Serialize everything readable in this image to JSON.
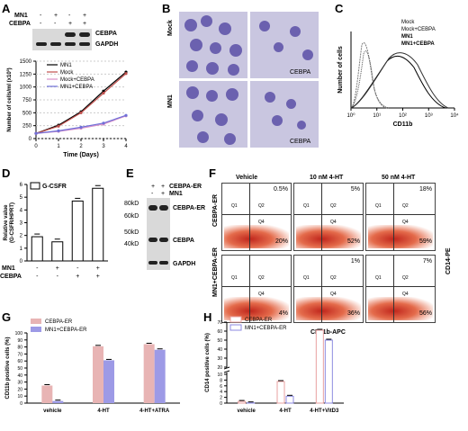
{
  "panels": {
    "A": "A",
    "B": "B",
    "C": "C",
    "D": "D",
    "E": "E",
    "F": "F",
    "G": "G",
    "H": "H"
  },
  "panelA": {
    "blot": {
      "row_labels": [
        "MN1",
        "CEBPA"
      ],
      "mn1_signs": [
        "-",
        "+",
        "-",
        "+"
      ],
      "cebpa_signs": [
        "-",
        "-",
        "+",
        "+"
      ],
      "bands": [
        "CEBPA",
        "GAPDH"
      ]
    }
  },
  "panelB": {
    "row_labels": [
      "Mock",
      "MN1"
    ],
    "cell_labels": [
      "CEBPA",
      "CEBPA"
    ]
  },
  "panelC": {
    "xlabel": "CD11b",
    "ylabel": "Number of cells",
    "legend": [
      "Mock",
      "Mock+CEBPA",
      "MN1",
      "MN1+CEBPA"
    ],
    "xticks": [
      "10⁰",
      "10¹",
      "10²",
      "10³",
      "10⁴"
    ]
  },
  "panelE": {
    "signs_row1": [
      "+",
      "+"
    ],
    "signs_row2": [
      "-",
      "+"
    ],
    "row_labels": [
      "CEBPA-ER",
      "MN1"
    ],
    "markers": [
      "80kD",
      "60kD",
      "50kD",
      "40kD"
    ],
    "bands": [
      "CEBPA-ER",
      "CEBPA",
      "GAPDH"
    ]
  },
  "panelF": {
    "col_titles": [
      "Vehicle",
      "10 nM 4-HT",
      "50 nM 4-HT"
    ],
    "row_labels": [
      "CEBPA-ER",
      "MN1+CEBPA-ER"
    ],
    "quadrants": [
      "Q1",
      "Q2",
      "Q4"
    ],
    "top_pct": [
      "0.5%",
      "5%",
      "18%",
      "",
      "1%",
      "7%"
    ],
    "bottom_pct": [
      "20%",
      "52%",
      "59%",
      "4%",
      "36%",
      "56%"
    ],
    "xlabel": "CD11b-APC",
    "ylabel": "CD14-PE"
  },
  "chart_data": [
    {
      "panel": "A",
      "type": "line",
      "xlabel": "Time (Days)",
      "ylabel": "Number of cells/ml (x10³)",
      "x": [
        0,
        1,
        2,
        3,
        4
      ],
      "ylim": [
        0,
        1500
      ],
      "yticks": [
        0,
        250,
        500,
        750,
        1000,
        1250,
        1500
      ],
      "series": [
        {
          "name": "MN1",
          "values": [
            100,
            260,
            520,
            920,
            1290
          ],
          "color": "#000000"
        },
        {
          "name": "Mock",
          "values": [
            100,
            240,
            500,
            880,
            1260
          ],
          "color": "#c0504d"
        },
        {
          "name": "Mock+CEBPA",
          "values": [
            100,
            140,
            200,
            280,
            440
          ],
          "color": "#d88fc8"
        },
        {
          "name": "MN1+CEBPA",
          "values": [
            100,
            150,
            220,
            300,
            450
          ],
          "color": "#6f70d8"
        }
      ]
    },
    {
      "panel": "D",
      "type": "bar",
      "ylabel": "Relative value\n(G-CSFR/HPRT)",
      "series": [
        {
          "name": "G-CSFR",
          "values": [
            1.9,
            1.5,
            4.7,
            5.7
          ]
        }
      ],
      "categories": [
        "1",
        "2",
        "3",
        "4"
      ],
      "mn1": [
        "-",
        "+",
        "-",
        "+"
      ],
      "cebpa": [
        "-",
        "-",
        "+",
        "+"
      ],
      "ylim": [
        0,
        6
      ],
      "yticks": [
        0,
        1,
        2,
        3,
        4,
        5,
        6
      ],
      "legend_loc": "top-left"
    },
    {
      "panel": "G",
      "type": "bar",
      "ylabel": "CD11b positive cells (%)",
      "categories": [
        "vehicle",
        "4-HT",
        "4-HT+ATRA"
      ],
      "series": [
        {
          "name": "CEBPA-ER",
          "values": [
            25,
            81,
            84
          ],
          "color": "#e8b4b4"
        },
        {
          "name": "MN1+CEBPA-ER",
          "values": [
            3,
            61,
            76
          ],
          "color": "#9d9ae6"
        }
      ],
      "ylim": [
        0,
        100
      ],
      "yticks": [
        0,
        10,
        20,
        30,
        40,
        50,
        60,
        70,
        80,
        90,
        100
      ],
      "legend_loc": "top-left"
    },
    {
      "panel": "H",
      "type": "bar",
      "ylabel": "CD14 positive cells (%)",
      "categories": [
        "vehicle",
        "4-HT",
        "4-HT+VitD3"
      ],
      "series": [
        {
          "name": "CEBPA-ER",
          "values": [
            0.6,
            7.5,
            61
          ],
          "color": "#e8b4b4"
        },
        {
          "name": "MN1+CEBPA-ER",
          "values": [
            0.1,
            2.4,
            50
          ],
          "color": "#9d9ae6"
        }
      ],
      "ylim": [
        0,
        70
      ],
      "yticks_lower": [
        0,
        2,
        4,
        6,
        8,
        10
      ],
      "yticks_upper": [
        20,
        30,
        40,
        50,
        60,
        70
      ],
      "axis_break": [
        10,
        20
      ],
      "legend_loc": "top-left"
    }
  ]
}
